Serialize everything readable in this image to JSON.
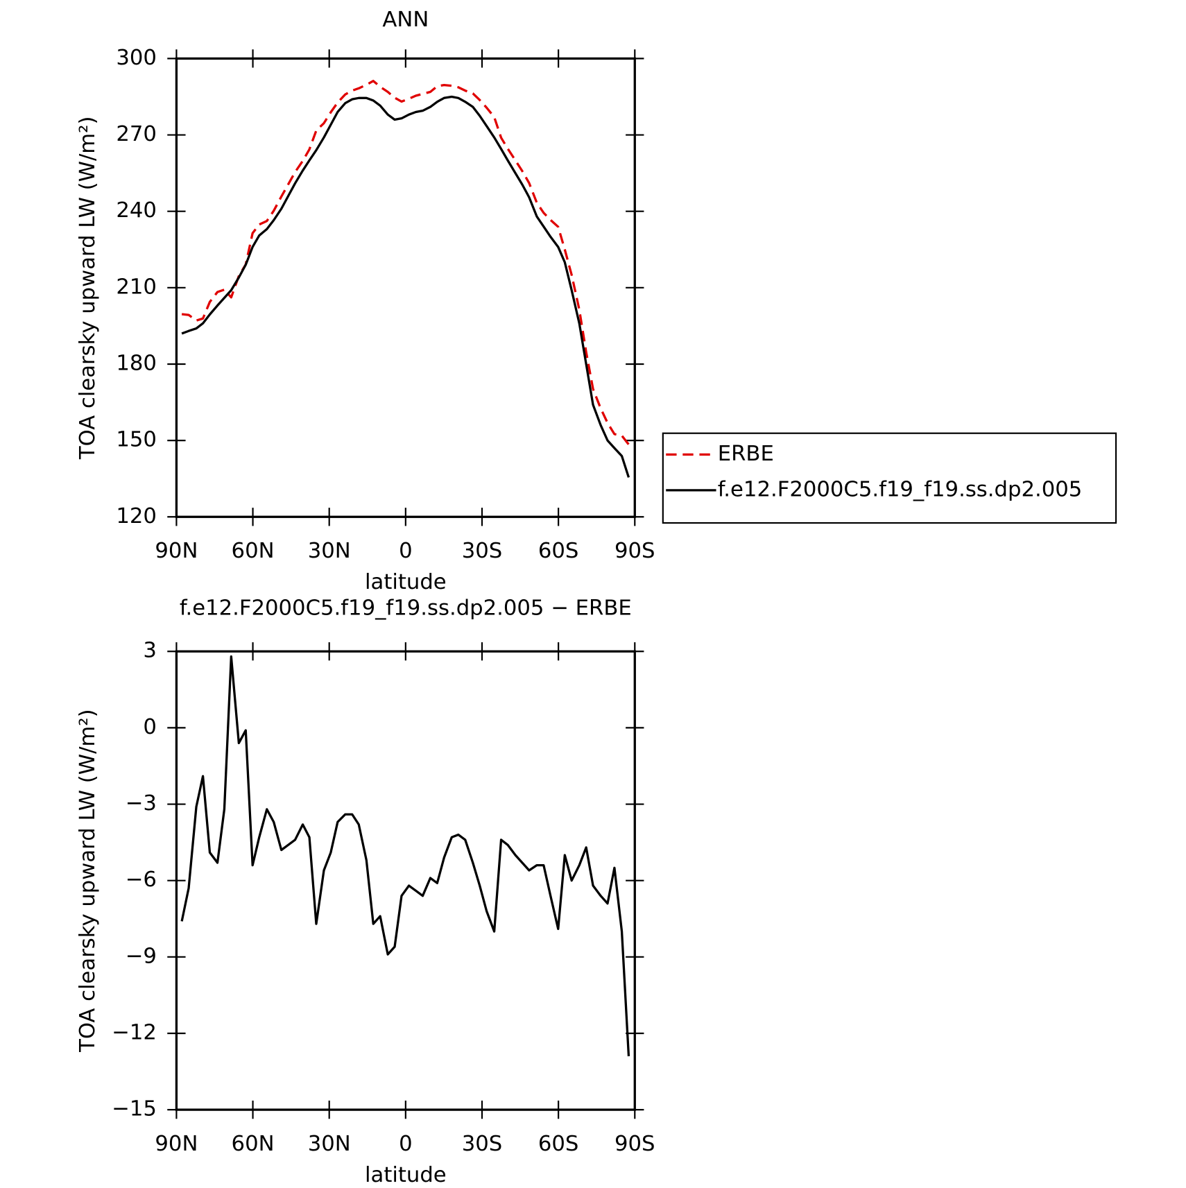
{
  "chart_data": [
    {
      "type": "line",
      "title": "ANN",
      "xlabel": "latitude",
      "ylabel": "TOA clearsky upward LW (W/m²)",
      "x": [
        87.9,
        85.2,
        82.2,
        79.6,
        76.9,
        73.9,
        71.2,
        68.5,
        65.5,
        62.8,
        60.1,
        57.5,
        54.5,
        51.8,
        48.8,
        46.1,
        43.4,
        40.4,
        37.8,
        35.1,
        32.1,
        29.4,
        26.7,
        23.7,
        21.0,
        18.4,
        15.4,
        12.7,
        10.0,
        7.0,
        4.3,
        1.6,
        -1.3,
        -4.0,
        -6.7,
        -9.7,
        -12.4,
        -15.1,
        -18.1,
        -20.7,
        -23.4,
        -26.4,
        -29.1,
        -31.8,
        -34.8,
        -37.5,
        -40.1,
        -43.1,
        -45.8,
        -48.5,
        -51.5,
        -54.2,
        -56.9,
        -59.9,
        -62.5,
        -65.2,
        -68.2,
        -70.9,
        -73.6,
        -76.6,
        -79.3,
        -82.0,
        -84.9,
        -87.6
      ],
      "series": [
        {
          "name": "ERBE",
          "color": "#e00000",
          "linestyle": "dashed",
          "values": [
            199.6,
            199.3,
            197.1,
            197.9,
            204.4,
            208.3,
            209.2,
            206.2,
            214.6,
            219.1,
            231.4,
            234.8,
            236.2,
            240.2,
            245.8,
            250.6,
            255.4,
            259.8,
            264.3,
            271.7,
            274.6,
            278.9,
            282.7,
            285.9,
            287.4,
            288.3,
            289.7,
            291.2,
            288.9,
            286.9,
            284.6,
            283.1,
            284.2,
            285.4,
            286.1,
            286.9,
            289.1,
            289.6,
            289.3,
            288.7,
            287.4,
            286.3,
            283.7,
            280.7,
            277.0,
            268.9,
            264.6,
            260.0,
            255.8,
            251.1,
            243.4,
            239.4,
            236.6,
            233.9,
            225.0,
            215.0,
            201.4,
            184.7,
            170.2,
            162.6,
            156.9,
            152.5,
            151.9,
            148.4
          ]
        },
        {
          "name": "f.e12.F2000C5.f19_f19.ss.dp2.005",
          "color": "#000000",
          "linestyle": "solid",
          "values": [
            192,
            193,
            194,
            196,
            199.5,
            203,
            206,
            209,
            214,
            219,
            226,
            230.5,
            233,
            236.5,
            241,
            246,
            251,
            256,
            260,
            264,
            269,
            274,
            279,
            282.5,
            284,
            284.5,
            284.5,
            283.5,
            281.5,
            278,
            276,
            276.5,
            278,
            279,
            279.5,
            281,
            283,
            284.5,
            285,
            284.5,
            283,
            281,
            277.5,
            273.5,
            269,
            264.5,
            260,
            255,
            250.5,
            245.5,
            238,
            234,
            230,
            226,
            220,
            209,
            196,
            180,
            164,
            156,
            150,
            147,
            143.9,
            135.5
          ]
        }
      ],
      "xlim": [
        90,
        -90
      ],
      "xticks": [
        {
          "value": 90,
          "label": "90N"
        },
        {
          "value": 60,
          "label": "60N"
        },
        {
          "value": 30,
          "label": "30N"
        },
        0,
        {
          "value": -30,
          "label": "30S"
        },
        {
          "value": -60,
          "label": "60S"
        },
        {
          "value": -90,
          "label": "90S"
        }
      ],
      "ylim": [
        120,
        300
      ],
      "yticks": [
        120,
        150,
        180,
        210,
        240,
        270,
        300
      ],
      "legend": "right"
    },
    {
      "type": "line",
      "title": "f.e12.F2000C5.f19_f19.ss.dp2.005 − ERBE",
      "xlabel": "latitude",
      "ylabel": "TOA clearsky upward LW (W/m²)",
      "x": [
        87.9,
        85.2,
        82.2,
        79.6,
        76.9,
        73.9,
        71.2,
        68.5,
        65.5,
        62.8,
        60.1,
        57.5,
        54.5,
        51.8,
        48.8,
        46.1,
        43.4,
        40.4,
        37.8,
        35.1,
        32.1,
        29.4,
        26.7,
        23.7,
        21.0,
        18.4,
        15.4,
        12.7,
        10.0,
        7.0,
        4.3,
        1.6,
        -1.3,
        -4.0,
        -6.7,
        -9.7,
        -12.4,
        -15.1,
        -18.1,
        -20.7,
        -23.4,
        -26.4,
        -29.1,
        -31.8,
        -34.8,
        -37.5,
        -40.1,
        -43.1,
        -45.8,
        -48.5,
        -51.5,
        -54.2,
        -56.9,
        -59.9,
        -62.5,
        -65.2,
        -68.2,
        -70.9,
        -73.6,
        -76.6,
        -79.3,
        -82.0,
        -84.9,
        -87.6
      ],
      "values": [
        -7.6,
        -6.3,
        -3.1,
        -1.9,
        -4.9,
        -5.3,
        -3.2,
        2.8,
        -0.6,
        -0.1,
        -5.4,
        -4.3,
        -3.2,
        -3.7,
        -4.8,
        -4.6,
        -4.4,
        -3.8,
        -4.3,
        -7.7,
        -5.6,
        -4.9,
        -3.7,
        -3.4,
        -3.4,
        -3.8,
        -5.2,
        -7.7,
        -7.4,
        -8.9,
        -8.6,
        -6.6,
        -6.2,
        -6.4,
        -6.6,
        -5.9,
        -6.1,
        -5.1,
        -4.3,
        -4.2,
        -4.4,
        -5.3,
        -6.2,
        -7.2,
        -8.0,
        -4.4,
        -4.6,
        -5.0,
        -5.3,
        -5.6,
        -5.4,
        -5.4,
        -6.6,
        -7.9,
        -5.0,
        -6.0,
        -5.4,
        -4.7,
        -6.2,
        -6.6,
        -6.9,
        -5.5,
        -8.0,
        -12.9
      ],
      "color": "#000000",
      "xlim": [
        90,
        -90
      ],
      "xticks": [
        {
          "value": 90,
          "label": "90N"
        },
        {
          "value": 60,
          "label": "60N"
        },
        {
          "value": 30,
          "label": "30N"
        },
        0,
        {
          "value": -30,
          "label": "30S"
        },
        {
          "value": -60,
          "label": "60S"
        },
        {
          "value": -90,
          "label": "90S"
        }
      ],
      "ylim": [
        -15,
        3
      ],
      "yticks": [
        {
          "value": -15,
          "label": "−15"
        },
        {
          "value": -12,
          "label": "−12"
        },
        {
          "value": -9,
          "label": "−9"
        },
        {
          "value": -6,
          "label": "−6"
        },
        {
          "value": -3,
          "label": "−3"
        },
        0,
        3
      ]
    }
  ]
}
